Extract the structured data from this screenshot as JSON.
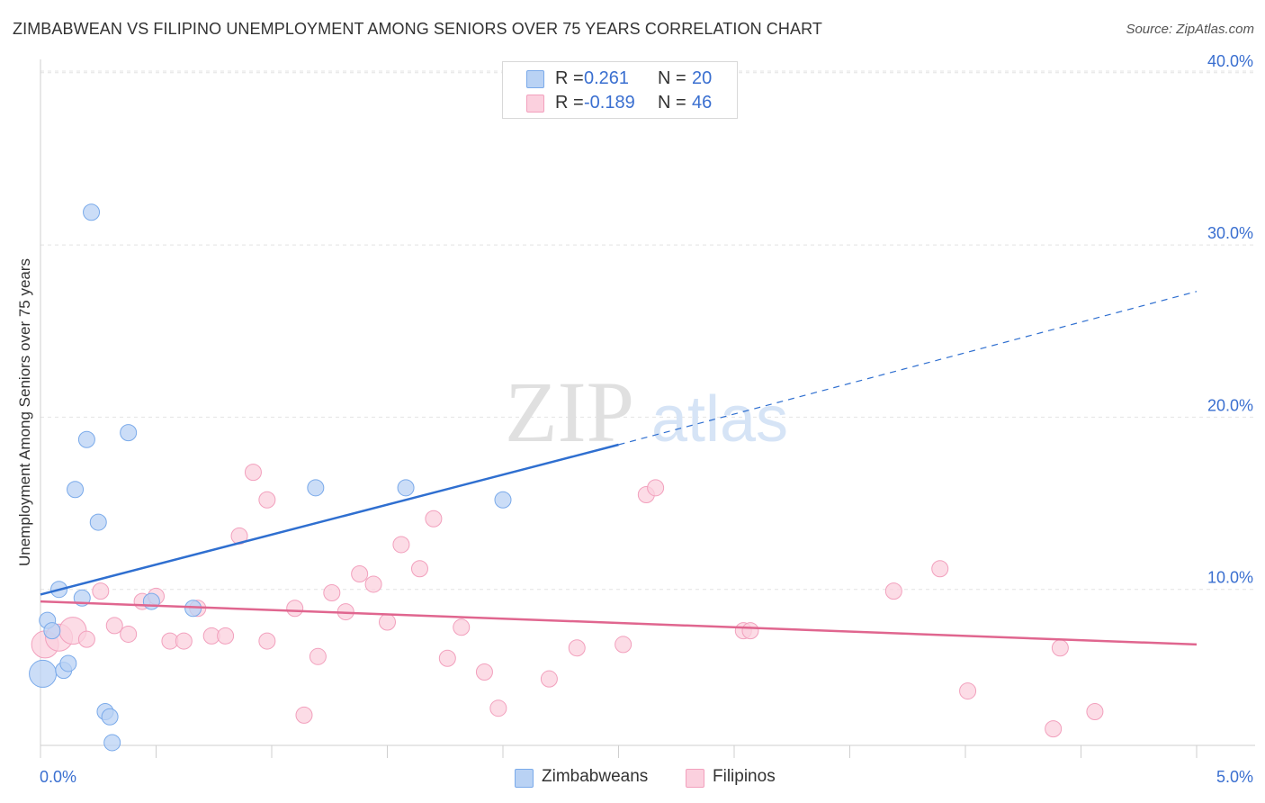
{
  "title": "ZIMBABWEAN VS FILIPINO UNEMPLOYMENT AMONG SENIORS OVER 75 YEARS CORRELATION CHART",
  "source": "Source: ZipAtlas.com",
  "watermark": {
    "zip": "ZIP",
    "atlas": "atlas"
  },
  "legend": {
    "rows": [
      {
        "r_label": "R =",
        "r_value": "0.261",
        "n_label": "N =",
        "n_value": "20"
      },
      {
        "r_label": "R =",
        "r_value": "-0.189",
        "n_label": "N =",
        "n_value": "46"
      }
    ]
  },
  "bottom_legend": {
    "series1": "Zimbabweans",
    "series2": "Filipinos"
  },
  "chart_data": {
    "type": "scatter",
    "title": "ZIMBABWEAN VS FILIPINO UNEMPLOYMENT AMONG SENIORS OVER 75 YEARS CORRELATION CHART",
    "xlabel": "",
    "ylabel": "Unemployment Among Seniors over 75 years",
    "xlim": [
      0,
      5
    ],
    "ylim": [
      0,
      41
    ],
    "x_tick_labels": [
      "0.0%",
      "5.0%"
    ],
    "y_ticks": [
      10,
      20,
      30,
      40
    ],
    "y_tick_labels": [
      "10.0%",
      "20.0%",
      "30.0%",
      "40.0%"
    ],
    "grid": true,
    "colors": {
      "zimbabweans": "#7aaaea",
      "filipinos": "#f2a0bd",
      "zim_line": "#2f6fd0",
      "fil_line": "#e0668f",
      "tick_label": "#3a6fd0"
    },
    "series": [
      {
        "name": "Zimbabweans",
        "points": [
          [
            0.01,
            5.1
          ],
          [
            0.03,
            8.2
          ],
          [
            0.05,
            7.6
          ],
          [
            0.08,
            10.0
          ],
          [
            0.1,
            5.3
          ],
          [
            0.12,
            5.7
          ],
          [
            0.15,
            15.8
          ],
          [
            0.18,
            9.5
          ],
          [
            0.2,
            18.7
          ],
          [
            0.25,
            13.9
          ],
          [
            0.22,
            31.9
          ],
          [
            0.28,
            2.9
          ],
          [
            0.3,
            2.6
          ],
          [
            0.31,
            1.1
          ],
          [
            0.38,
            19.1
          ],
          [
            0.48,
            9.3
          ],
          [
            0.66,
            8.9
          ],
          [
            1.19,
            15.9
          ],
          [
            1.58,
            15.9
          ],
          [
            2.0,
            15.2
          ]
        ],
        "trend": {
          "x0": 0.0,
          "y0": 9.7,
          "x1": 2.5,
          "y1": 18.4,
          "dash_to_x": 5.0,
          "dash_to_y": 27.3
        }
      },
      {
        "name": "Filipinos",
        "points": [
          [
            0.02,
            6.8
          ],
          [
            0.08,
            7.2
          ],
          [
            0.14,
            7.6
          ],
          [
            0.2,
            7.1
          ],
          [
            0.26,
            9.9
          ],
          [
            0.32,
            7.9
          ],
          [
            0.38,
            7.4
          ],
          [
            0.44,
            9.3
          ],
          [
            0.5,
            9.6
          ],
          [
            0.56,
            7.0
          ],
          [
            0.62,
            7.0
          ],
          [
            0.68,
            8.9
          ],
          [
            0.74,
            7.3
          ],
          [
            0.8,
            7.3
          ],
          [
            0.86,
            13.1
          ],
          [
            0.92,
            16.8
          ],
          [
            0.98,
            15.2
          ],
          [
            0.98,
            7.0
          ],
          [
            1.1,
            8.9
          ],
          [
            1.14,
            2.7
          ],
          [
            1.2,
            6.1
          ],
          [
            1.26,
            9.8
          ],
          [
            1.32,
            8.7
          ],
          [
            1.38,
            10.9
          ],
          [
            1.44,
            10.3
          ],
          [
            1.5,
            8.1
          ],
          [
            1.56,
            12.6
          ],
          [
            1.64,
            11.2
          ],
          [
            1.7,
            14.1
          ],
          [
            1.76,
            6.0
          ],
          [
            1.82,
            7.8
          ],
          [
            1.92,
            5.2
          ],
          [
            1.98,
            3.1
          ],
          [
            2.2,
            4.8
          ],
          [
            2.32,
            6.6
          ],
          [
            2.52,
            6.8
          ],
          [
            2.62,
            15.5
          ],
          [
            2.66,
            15.9
          ],
          [
            3.04,
            7.6
          ],
          [
            3.07,
            7.6
          ],
          [
            3.69,
            9.9
          ],
          [
            3.89,
            11.2
          ],
          [
            4.01,
            4.1
          ],
          [
            4.38,
            1.9
          ],
          [
            4.41,
            6.6
          ],
          [
            4.56,
            2.9
          ]
        ],
        "trend": {
          "x0": 0.0,
          "y0": 9.3,
          "x1": 5.0,
          "y1": 6.8
        }
      }
    ]
  }
}
